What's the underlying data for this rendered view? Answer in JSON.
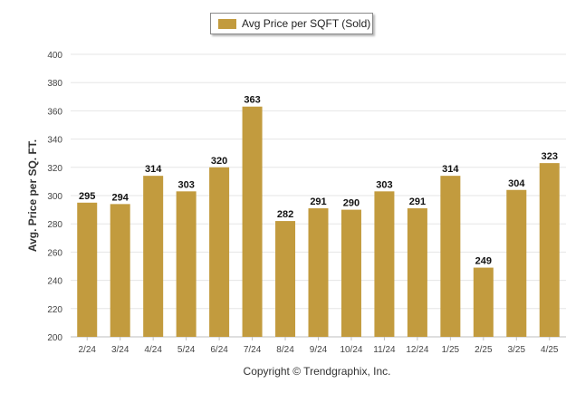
{
  "legend": {
    "label": "Avg Price per SQFT (Sold)"
  },
  "footer": {
    "copyright": "Copyright © Trendgraphix, Inc."
  },
  "colors": {
    "bar": "#c29b3e",
    "grid": "#e6e6e6",
    "axis": "#bfbfbf"
  },
  "chart_data": {
    "type": "bar",
    "categories": [
      "2/24",
      "3/24",
      "4/24",
      "5/24",
      "6/24",
      "7/24",
      "8/24",
      "9/24",
      "10/24",
      "11/24",
      "12/24",
      "1/25",
      "2/25",
      "3/25",
      "4/25"
    ],
    "series": [
      {
        "name": "Avg Price per SQFT (Sold)",
        "values": [
          295,
          294,
          314,
          303,
          320,
          363,
          282,
          291,
          290,
          303,
          291,
          314,
          249,
          304,
          323
        ]
      }
    ],
    "xlabel": "",
    "ylabel": "Avg. Price per SQ. FT.",
    "ylim": [
      200,
      400
    ],
    "yticks": [
      200,
      220,
      240,
      260,
      280,
      300,
      320,
      340,
      360,
      380,
      400
    ],
    "grid": true,
    "legend_position": "top-center",
    "data_labels": true
  }
}
